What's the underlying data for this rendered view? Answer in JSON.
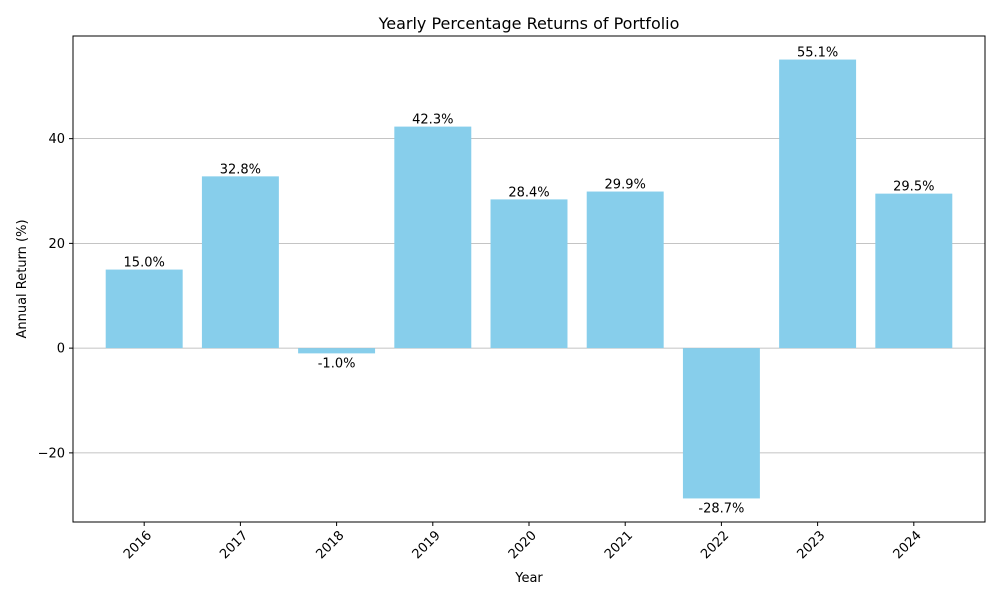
{
  "chart_data": {
    "type": "bar",
    "title": "Yearly Percentage Returns of Portfolio",
    "xlabel": "Year",
    "ylabel": "Annual Return (%)",
    "categories": [
      "2016",
      "2017",
      "2018",
      "2019",
      "2020",
      "2021",
      "2022",
      "2023",
      "2024"
    ],
    "values": [
      15.0,
      32.8,
      -1.0,
      42.3,
      28.4,
      29.9,
      -28.7,
      55.1,
      29.5
    ],
    "data_labels": [
      "15.0%",
      "32.8%",
      "-1.0%",
      "42.3%",
      "28.4%",
      "29.9%",
      "-28.7%",
      "55.1%",
      "29.5%"
    ],
    "ylim": [
      -33.2,
      59.6
    ],
    "yticks": [
      -20,
      0,
      20,
      40
    ],
    "ytick_labels": [
      "−20",
      "0",
      "20",
      "40"
    ],
    "grid": "y-axis",
    "bar_color": "#87CEEB",
    "grid_color": "#b0b0b0",
    "x_tick_rotation": 45
  }
}
